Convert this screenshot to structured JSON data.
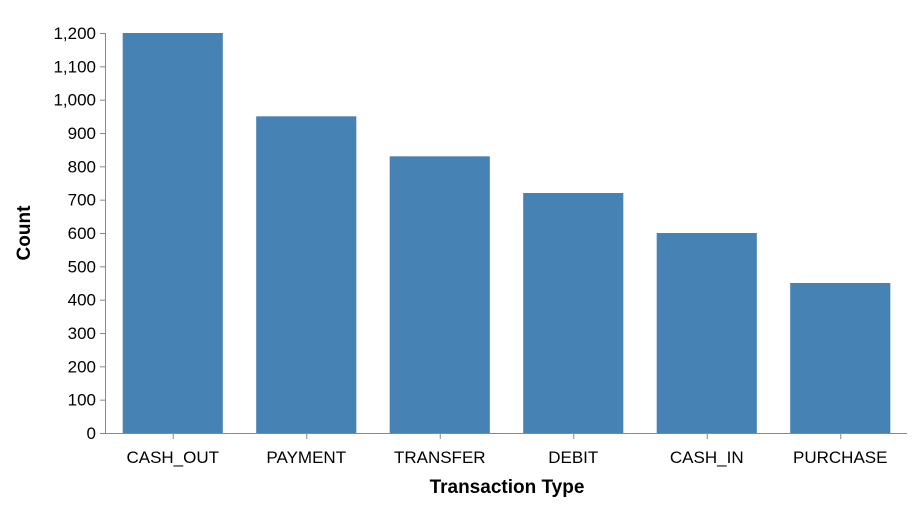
{
  "chart_data": {
    "type": "bar",
    "title": "",
    "xlabel": "Transaction Type",
    "ylabel": "Count",
    "categories": [
      "CASH_OUT",
      "PAYMENT",
      "TRANSFER",
      "DEBIT",
      "CASH_IN",
      "PURCHASE"
    ],
    "values": [
      1200,
      950,
      830,
      720,
      600,
      450
    ],
    "ylim": [
      0,
      1200
    ],
    "yticks": [
      0,
      100,
      200,
      300,
      400,
      500,
      600,
      700,
      800,
      900,
      1000,
      1100,
      1200
    ],
    "ytick_labels": [
      "0",
      "100",
      "200",
      "300",
      "400",
      "500",
      "600",
      "700",
      "800",
      "900",
      "1,000",
      "1,100",
      "1,200"
    ],
    "bar_color": "#4682b4",
    "grid": false,
    "legend": false
  }
}
